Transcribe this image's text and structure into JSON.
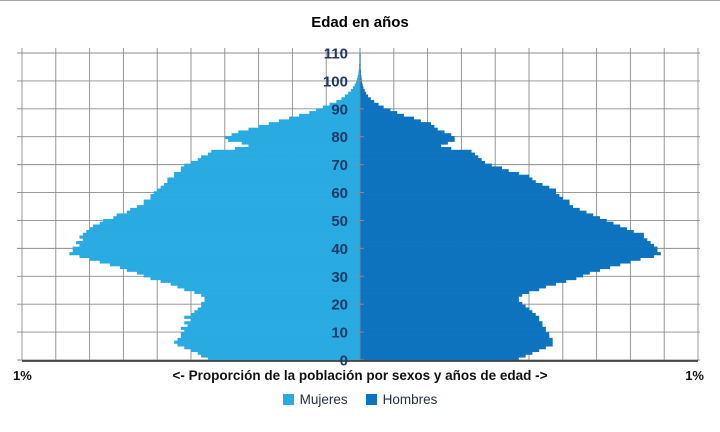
{
  "header": {
    "title": "Edad en años"
  },
  "chart_data": {
    "type": "bar",
    "subtype": "population-pyramid",
    "title": "Edad en años",
    "xlabel": "<- Proporción de la población por sexos y años de edad ->",
    "x_axis_left_label": "1%",
    "x_axis_right_label": "1%",
    "xlim_pct_per_side": 1.0,
    "x_gridline_step_pct": 0.1,
    "age_min": 0,
    "age_max": 110,
    "age_tick_step": 10,
    "age_ticks": [
      "0",
      "10",
      "20",
      "30",
      "40",
      "50",
      "60",
      "70",
      "80",
      "90",
      "100",
      "110"
    ],
    "grid": true,
    "legend_position": "bottom",
    "units": "percent of total population per 1-year age group",
    "series": [
      {
        "name": "Mujeres",
        "side": "left",
        "color": "#29ABE2",
        "values": [
          0.45,
          0.47,
          0.48,
          0.5,
          0.52,
          0.54,
          0.55,
          0.54,
          0.53,
          0.53,
          0.52,
          0.53,
          0.51,
          0.52,
          0.5,
          0.52,
          0.5,
          0.49,
          0.48,
          0.47,
          0.47,
          0.46,
          0.46,
          0.47,
          0.49,
          0.52,
          0.54,
          0.56,
          0.59,
          0.62,
          0.64,
          0.66,
          0.69,
          0.71,
          0.74,
          0.77,
          0.8,
          0.83,
          0.86,
          0.85,
          0.85,
          0.83,
          0.84,
          0.82,
          0.83,
          0.82,
          0.81,
          0.8,
          0.79,
          0.77,
          0.76,
          0.73,
          0.72,
          0.69,
          0.68,
          0.66,
          0.64,
          0.64,
          0.62,
          0.62,
          0.61,
          0.6,
          0.59,
          0.58,
          0.57,
          0.57,
          0.55,
          0.55,
          0.53,
          0.53,
          0.52,
          0.5,
          0.48,
          0.47,
          0.45,
          0.44,
          0.37,
          0.33,
          0.35,
          0.39,
          0.4,
          0.38,
          0.36,
          0.33,
          0.3,
          0.27,
          0.24,
          0.21,
          0.18,
          0.15,
          0.13,
          0.11,
          0.09,
          0.07,
          0.055,
          0.045,
          0.035,
          0.027,
          0.021,
          0.016,
          0.012,
          0.009,
          0.007,
          0.005,
          0.004,
          0.003,
          0.003,
          0.002,
          0.002,
          0.002,
          0.002
        ]
      },
      {
        "name": "Hombres",
        "side": "right",
        "color": "#0E73BE",
        "values": [
          0.47,
          0.49,
          0.51,
          0.53,
          0.55,
          0.57,
          0.57,
          0.57,
          0.56,
          0.56,
          0.55,
          0.55,
          0.54,
          0.54,
          0.53,
          0.53,
          0.52,
          0.51,
          0.5,
          0.49,
          0.48,
          0.47,
          0.47,
          0.48,
          0.5,
          0.53,
          0.55,
          0.58,
          0.61,
          0.64,
          0.66,
          0.68,
          0.71,
          0.74,
          0.77,
          0.8,
          0.83,
          0.87,
          0.89,
          0.88,
          0.88,
          0.87,
          0.86,
          0.85,
          0.84,
          0.84,
          0.81,
          0.79,
          0.77,
          0.75,
          0.73,
          0.71,
          0.69,
          0.67,
          0.65,
          0.63,
          0.62,
          0.62,
          0.6,
          0.59,
          0.58,
          0.58,
          0.56,
          0.54,
          0.52,
          0.51,
          0.5,
          0.47,
          0.44,
          0.42,
          0.39,
          0.37,
          0.36,
          0.35,
          0.34,
          0.33,
          0.27,
          0.24,
          0.26,
          0.28,
          0.28,
          0.27,
          0.25,
          0.23,
          0.22,
          0.21,
          0.18,
          0.16,
          0.13,
          0.11,
          0.09,
          0.07,
          0.055,
          0.042,
          0.032,
          0.024,
          0.018,
          0.014,
          0.01,
          0.008,
          0.006,
          0.005,
          0.004,
          0.003,
          0.003,
          0.002,
          0.002,
          0.002,
          0.001,
          0.001,
          0.001
        ]
      }
    ],
    "colors": {
      "grid": "#8c8c8c",
      "bottom_axis": "#3f3f3f",
      "center_line": "#6188a8",
      "tick_label": "#1F3864",
      "text": "#000000"
    }
  }
}
